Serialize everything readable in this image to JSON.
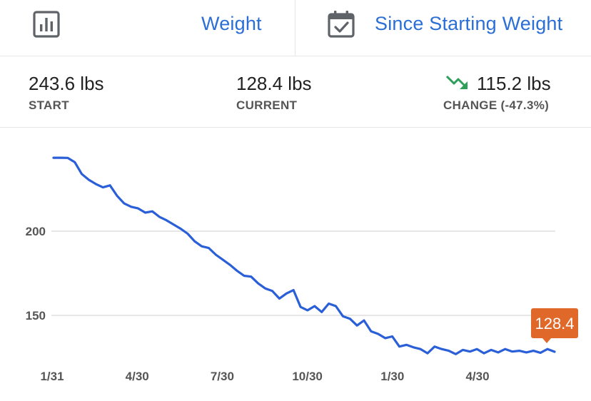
{
  "toolbar": {
    "left_icon": "bar-chart-icon",
    "metric_label": "Weight",
    "right_icon": "calendar-check-icon",
    "period_label": "Since Starting Weight"
  },
  "stats": {
    "start": {
      "value": "243.6 lbs",
      "label": "START"
    },
    "current": {
      "value": "128.4 lbs",
      "label": "CURRENT"
    },
    "change": {
      "value": "115.2 lbs",
      "label": "CHANGE (-47.3%)",
      "icon": "trending-down-icon"
    }
  },
  "colors": {
    "accent": "#2b6fd6",
    "line": "#2a5fd8",
    "trend_down": "#2e9e5b",
    "badge": "#e0692a",
    "grid": "#dddddd"
  },
  "chart_data": {
    "type": "line",
    "title": "",
    "xlabel": "",
    "ylabel": "",
    "x_tick_labels": [
      "1/31",
      "4/30",
      "7/30",
      "10/30",
      "1/30",
      "4/30"
    ],
    "y_ticks": [
      200,
      150
    ],
    "grid": "horizontal",
    "last_value_label": "128.4",
    "series": [
      {
        "values": [
          243.6,
          243.6,
          243.5,
          241.0,
          234.0,
          230.5,
          228.0,
          226.0,
          227.2,
          221.0,
          216.5,
          214.5,
          213.5,
          211.0,
          211.8,
          208.5,
          206.5,
          204.0,
          201.5,
          198.5,
          194.0,
          191.0,
          190.0,
          186.0,
          183.0,
          180.0,
          176.5,
          173.5,
          173.0,
          169.0,
          166.0,
          164.5,
          160.0,
          163.0,
          165.0,
          155.0,
          153.0,
          155.5,
          152.0,
          157.0,
          155.5,
          149.5,
          148.0,
          144.0,
          147.0,
          140.5,
          139.0,
          136.5,
          137.5,
          131.5,
          132.5,
          131.0,
          130.0,
          127.5,
          131.5,
          130.0,
          129.0,
          127.0,
          129.5,
          128.5,
          130.0,
          127.5,
          129.5,
          128.0,
          130.0,
          128.5,
          129.0,
          128.0,
          129.0,
          127.8,
          130.0,
          128.4
        ]
      }
    ]
  }
}
